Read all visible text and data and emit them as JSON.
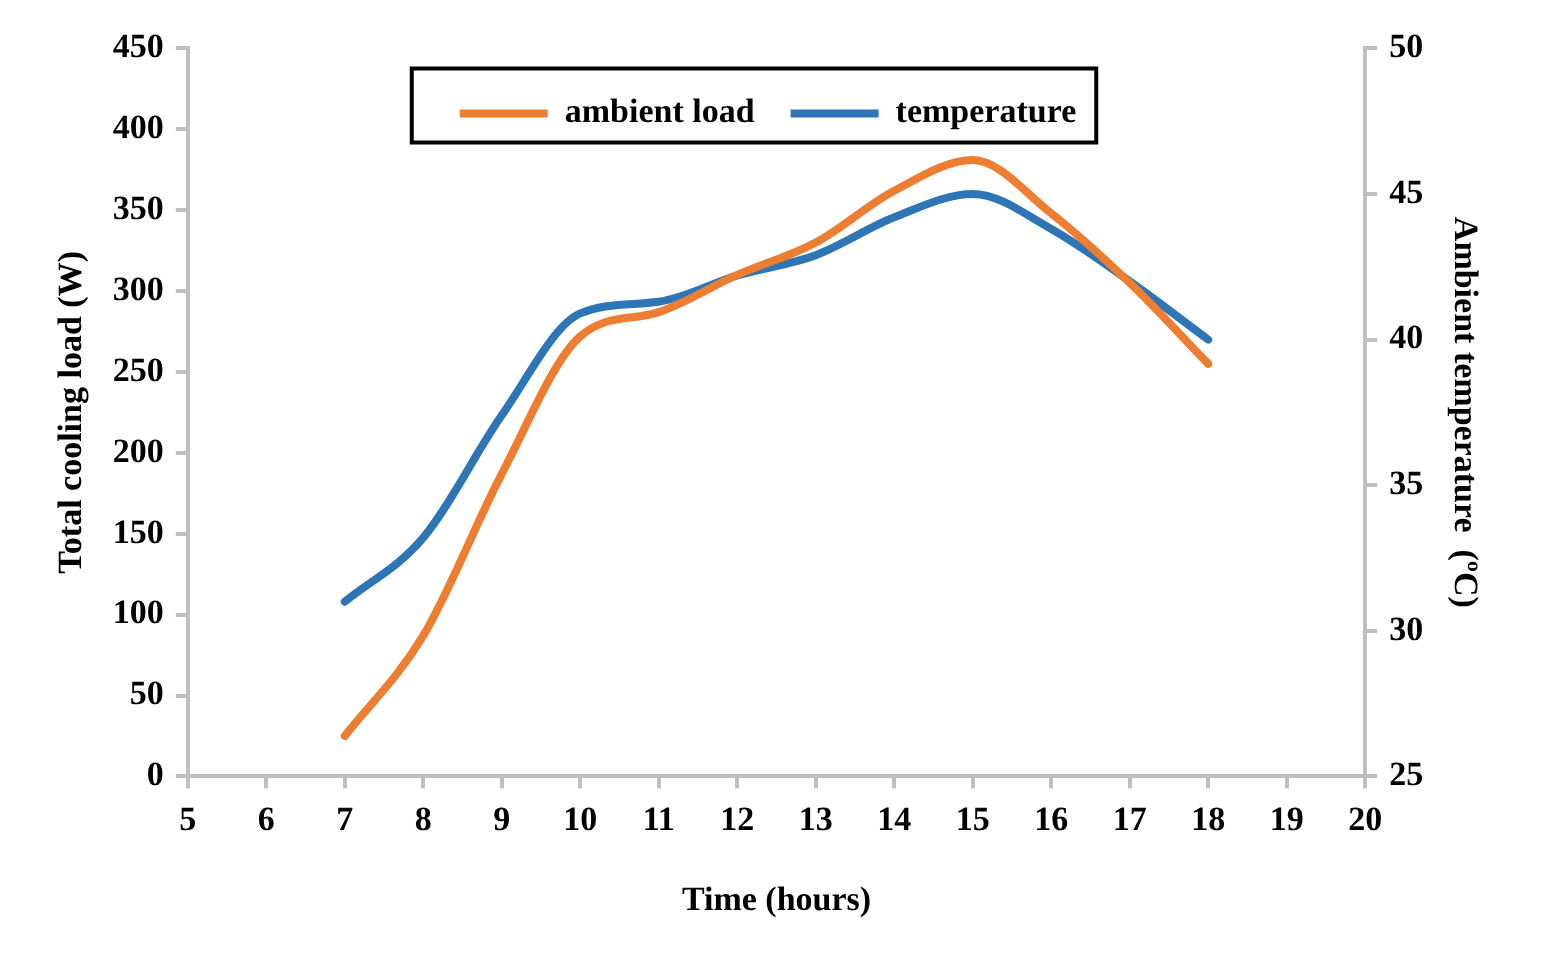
{
  "chart_data": {
    "type": "line",
    "xlabel": "Time (hours)",
    "ylabel": "Total cooling load (W)",
    "y2label": "Ambient temperature  (ºC)",
    "x": [
      7,
      8,
      9,
      10,
      11,
      12,
      13,
      14,
      15,
      16,
      17,
      18
    ],
    "series": [
      {
        "name": "ambient load",
        "color": "#ed7d31",
        "values": [
          25,
          87,
          187,
          272,
          287,
          310,
          330,
          362,
          381,
          348,
          305,
          255
        ]
      },
      {
        "name": "temperature",
        "color": "#2e75b6",
        "axis": "y2",
        "values": [
          31,
          33.2,
          37.4,
          40.9,
          41.3,
          42.2,
          42.9,
          44.2,
          45,
          43.8,
          42,
          40
        ]
      }
    ],
    "xlim": [
      5,
      20
    ],
    "xticks": [
      5,
      6,
      7,
      8,
      9,
      10,
      11,
      12,
      13,
      14,
      15,
      16,
      17,
      18,
      19,
      20
    ],
    "ylim": [
      0,
      450
    ],
    "yticks": [
      0,
      50,
      100,
      150,
      200,
      250,
      300,
      350,
      400,
      450
    ],
    "y2lim": [
      25,
      50
    ],
    "y2ticks": [
      25,
      30,
      35,
      40,
      45,
      50
    ],
    "grid": false,
    "legend": "top",
    "marker": "none",
    "line_style": "solid"
  }
}
